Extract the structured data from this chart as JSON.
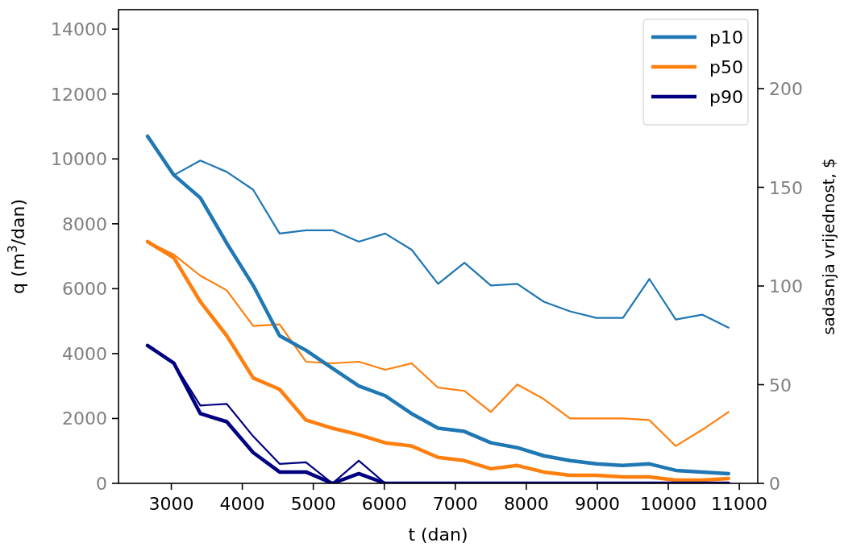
{
  "chart_data": {
    "type": "line",
    "xlabel": "t (dan)",
    "ylabel": "q  (m$^{3}$/dan)",
    "y2label": "sadasnja vrijednost, $",
    "x": [
      2665,
      3037,
      3409,
      3781,
      4153,
      4525,
      4897,
      5269,
      5641,
      6013,
      6385,
      6757,
      7129,
      7501,
      7873,
      8245,
      8617,
      8989,
      9361,
      9733,
      10105,
      10477,
      10849
    ],
    "xlim": [
      2256,
      11260
    ],
    "xticks": [
      3000,
      4000,
      5000,
      6000,
      7000,
      8000,
      9000,
      10000,
      11000
    ],
    "ylim": [
      0,
      14600
    ],
    "yticks": [
      0,
      2000,
      4000,
      6000,
      8000,
      10000,
      12000,
      14000
    ],
    "y2lim": [
      0,
      240
    ],
    "y2ticks": [
      0,
      50,
      100,
      150,
      200
    ],
    "legend": "top right",
    "grid": false,
    "line_style": "solid",
    "marker": "none",
    "series": [
      {
        "color": "#1f77b4",
        "values": [
          10700,
          9500,
          9950,
          9600,
          9050,
          7700,
          7800,
          7800,
          7450,
          7700,
          7200,
          6150,
          6800,
          6100,
          6150,
          5600,
          5300,
          5100,
          5100,
          6300,
          5050,
          5200,
          4800
        ]
      },
      {
        "color": "#ff7f0e",
        "values": [
          7450,
          7050,
          6400,
          5950,
          4850,
          4900,
          3750,
          3700,
          3750,
          3500,
          3700,
          2950,
          2850,
          2200,
          3050,
          2600,
          2000,
          2000,
          2000,
          1950,
          1150,
          1650,
          2200
        ]
      },
      {
        "color": "#000080",
        "values": [
          4250,
          3700,
          2400,
          2450,
          1450,
          600,
          650,
          0,
          700,
          0,
          0,
          0,
          0,
          0,
          0,
          0,
          0,
          0,
          0,
          0,
          0,
          0,
          0
        ]
      },
      {
        "name": "p10",
        "color": "#1f77b4",
        "values": [
          10700,
          9500,
          8800,
          7400,
          6100,
          4550,
          4100,
          3550,
          3000,
          2700,
          2150,
          1700,
          1600,
          1250,
          1100,
          850,
          700,
          600,
          550,
          600,
          400,
          350,
          300
        ]
      },
      {
        "name": "p50",
        "color": "#ff7f0e",
        "values": [
          7450,
          6950,
          5600,
          4550,
          3250,
          2900,
          1950,
          1700,
          1500,
          1250,
          1150,
          800,
          700,
          450,
          550,
          350,
          250,
          250,
          200,
          200,
          100,
          100,
          150
        ]
      },
      {
        "name": "p90",
        "color": "#000080",
        "values": [
          4250,
          3700,
          2150,
          1900,
          950,
          350,
          350,
          0,
          300,
          0,
          0,
          0,
          0,
          0,
          0,
          0,
          0,
          0,
          0,
          0,
          0,
          0,
          0
        ]
      }
    ]
  }
}
